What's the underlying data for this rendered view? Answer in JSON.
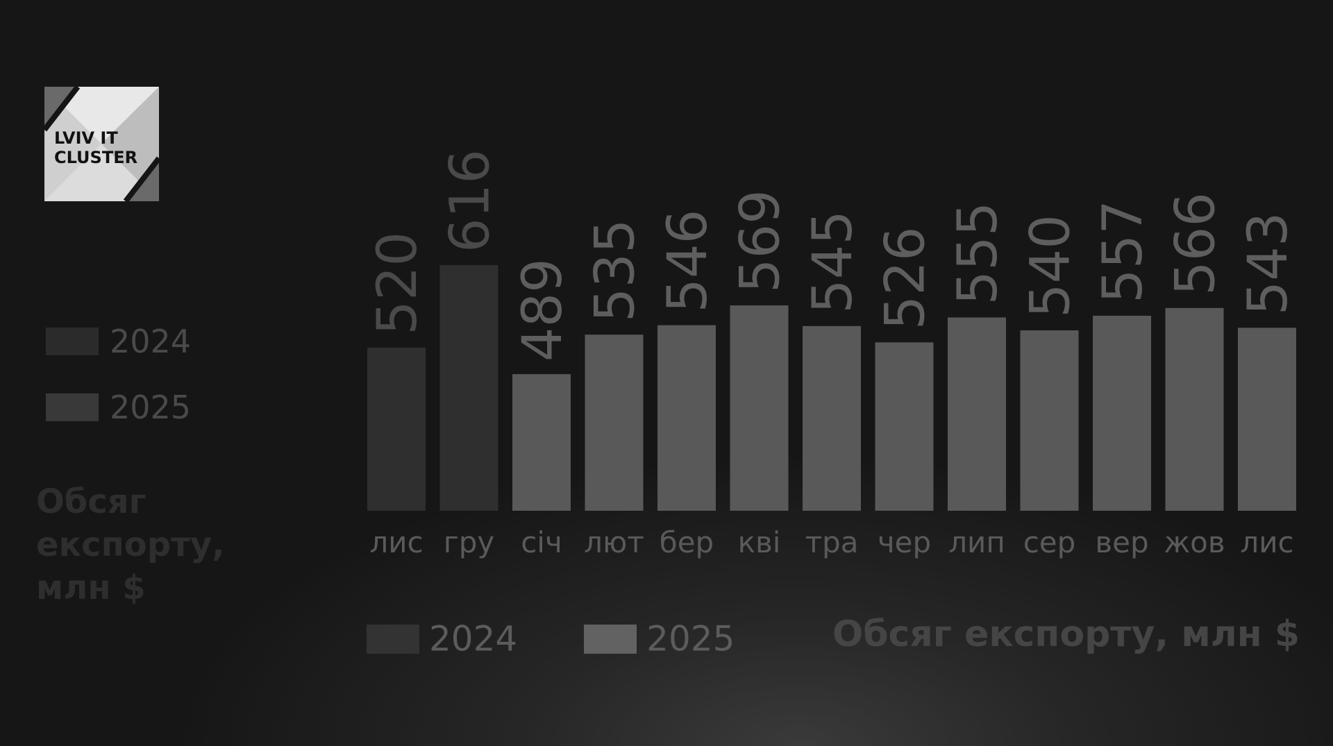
{
  "logo": {
    "text": "LVIV IT CLUSTER"
  },
  "chart_data": {
    "type": "bar",
    "title": "Обсяг експорту, млн $",
    "categories": [
      "лис",
      "гру",
      "січ",
      "лют",
      "бер",
      "кві",
      "тра",
      "чер",
      "лип",
      "сер",
      "вер",
      "жов",
      "лис"
    ],
    "values": [
      520,
      616,
      489,
      535,
      546,
      569,
      545,
      526,
      555,
      540,
      557,
      566,
      543
    ],
    "year": [
      "2024",
      "2024",
      "2025",
      "2025",
      "2025",
      "2025",
      "2025",
      "2025",
      "2025",
      "2025",
      "2025",
      "2025",
      "2025"
    ],
    "series": [
      {
        "name": "2024",
        "color": "#2f2f2f"
      },
      {
        "name": "2025",
        "color": "#595959"
      }
    ],
    "ylim": [
      330,
      620
    ],
    "grid": false,
    "legend": [
      "left",
      "bottom"
    ],
    "ylabel": "Обсяг експорту, млн $"
  },
  "legend_left": {
    "items": [
      "2024",
      "2025"
    ],
    "title_line1": "Обсяг експорту,",
    "title_line2": "млн $"
  },
  "legend_bottom": {
    "items": [
      "2024",
      "2025"
    ],
    "title": "Обсяг експорту, млн $"
  }
}
